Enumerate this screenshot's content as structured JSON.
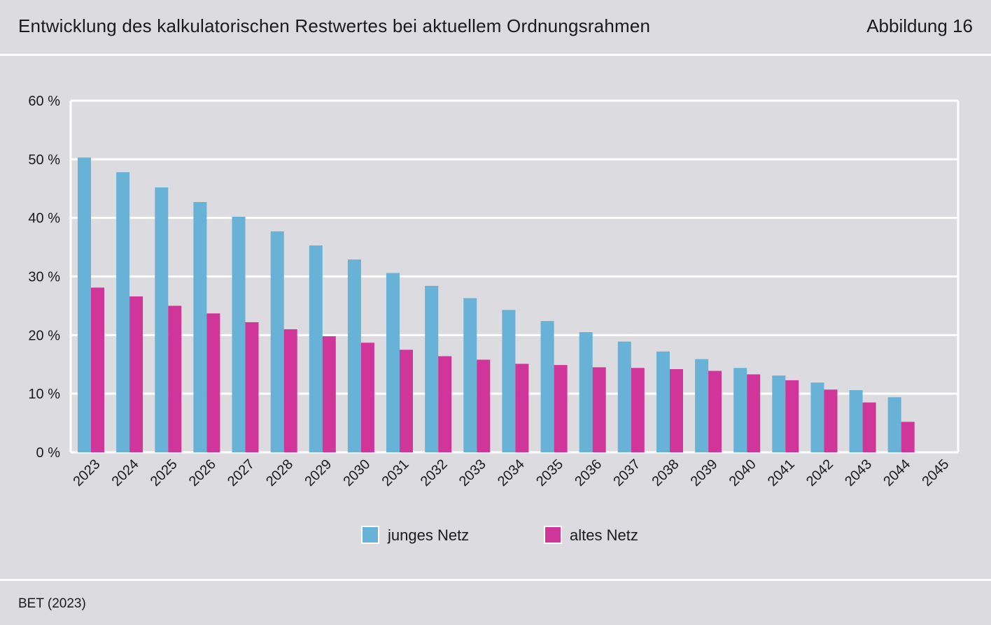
{
  "header": {
    "title": "Entwicklung des kalkulatorischen Restwertes bei aktuellem Ordnungsrahmen",
    "figure_label": "Abbildung 16"
  },
  "footer": {
    "source": "BET (2023)"
  },
  "colors": {
    "background": "#dcdbe0",
    "gridline": "#ffffff",
    "series_young": "#67b2d6",
    "series_old": "#d0359a"
  },
  "chart_data": {
    "type": "bar",
    "title": "Entwicklung des kalkulatorischen Restwertes bei aktuellem Ordnungsrahmen",
    "xlabel": "",
    "ylabel": "",
    "ylim": [
      0,
      60
    ],
    "yticks": [
      "0 %",
      "10 %",
      "20 %",
      "30 %",
      "40 %",
      "50 %",
      "60 %"
    ],
    "grid": true,
    "legend_position": "bottom-center",
    "categories": [
      "2023",
      "2024",
      "2025",
      "2026",
      "2027",
      "2028",
      "2029",
      "2030",
      "2031",
      "2032",
      "2033",
      "2034",
      "2035",
      "2036",
      "2037",
      "2038",
      "2039",
      "2040",
      "2041",
      "2042",
      "2043",
      "2044",
      "2045"
    ],
    "series": [
      {
        "name": "junges Netz",
        "color": "#67b2d6",
        "values": [
          50.3,
          47.8,
          45.2,
          42.7,
          40.2,
          37.7,
          35.3,
          32.9,
          30.6,
          28.4,
          26.3,
          24.3,
          22.4,
          20.5,
          18.9,
          17.2,
          15.9,
          14.4,
          13.1,
          11.9,
          10.6,
          9.4,
          0
        ]
      },
      {
        "name": "altes Netz",
        "color": "#d0359a",
        "values": [
          28.1,
          26.6,
          25.0,
          23.7,
          22.2,
          21.0,
          19.8,
          18.7,
          17.5,
          16.4,
          15.8,
          15.1,
          14.9,
          14.5,
          14.4,
          14.2,
          13.9,
          13.3,
          12.3,
          10.7,
          8.5,
          5.2,
          0
        ]
      }
    ]
  }
}
